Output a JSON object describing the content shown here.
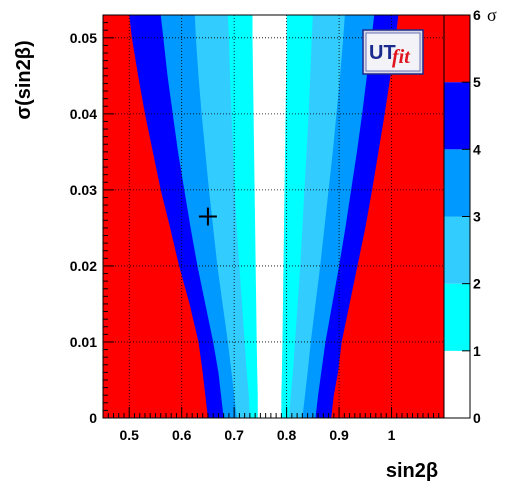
{
  "chart_data": {
    "type": "heatmap",
    "title": "",
    "xlabel": "sin2β",
    "ylabel": "σ(sin2β)",
    "xlim": [
      0.45,
      1.1
    ],
    "ylim": [
      0,
      0.053
    ],
    "xticks": [
      {
        "value": 0.5,
        "label": "0.5"
      },
      {
        "value": 0.6,
        "label": "0.6"
      },
      {
        "value": 0.7,
        "label": "0.7"
      },
      {
        "value": 0.8,
        "label": "0.8"
      },
      {
        "value": 0.9,
        "label": "0.9"
      },
      {
        "value": 1.0,
        "label": "1"
      }
    ],
    "yticks": [
      {
        "value": 0,
        "label": "0"
      },
      {
        "value": 0.01,
        "label": "0.01"
      },
      {
        "value": 0.02,
        "label": "0.02"
      },
      {
        "value": 0.03,
        "label": "0.03"
      },
      {
        "value": 0.04,
        "label": "0.04"
      },
      {
        "value": 0.05,
        "label": "0.05"
      }
    ],
    "grid": true,
    "marker": {
      "x": 0.65,
      "y": 0.0265,
      "symbol": "cross"
    },
    "colorbar": {
      "unit": "σ",
      "labels": [
        "0",
        "1",
        "2",
        "3",
        "4",
        "5",
        "6"
      ],
      "levels": [
        {
          "from": 0,
          "to": 1,
          "color": "#ffffff"
        },
        {
          "from": 1,
          "to": 2,
          "color": "#00ffff"
        },
        {
          "from": 2,
          "to": 3,
          "color": "#33ccff"
        },
        {
          "from": 3,
          "to": 4,
          "color": "#0099ff"
        },
        {
          "from": 4,
          "to": 5,
          "color": "#0000ff"
        },
        {
          "from": 5,
          "to": 6,
          "color": "#ff0000"
        }
      ]
    },
    "contours": {
      "y": [
        0.0,
        0.003,
        0.006,
        0.01,
        0.015,
        0.02,
        0.025,
        0.03,
        0.035,
        0.04,
        0.045,
        0.05,
        0.053
      ],
      "left": [
        [
          0.745,
          0.73,
          0.705,
          0.68,
          0.65,
          0.635
        ],
        [
          0.745,
          0.728,
          0.7,
          0.675,
          0.645,
          0.63
        ],
        [
          0.744,
          0.724,
          0.695,
          0.67,
          0.64,
          0.625
        ],
        [
          0.743,
          0.72,
          0.688,
          0.66,
          0.632,
          0.61
        ],
        [
          0.742,
          0.715,
          0.678,
          0.645,
          0.615,
          0.59
        ],
        [
          0.741,
          0.71,
          0.668,
          0.63,
          0.595,
          0.565
        ],
        [
          0.74,
          0.705,
          0.66,
          0.617,
          0.578,
          0.545
        ],
        [
          0.739,
          0.701,
          0.652,
          0.605,
          0.56,
          0.525
        ],
        [
          0.738,
          0.698,
          0.645,
          0.593,
          0.545,
          0.508
        ],
        [
          0.737,
          0.695,
          0.638,
          0.583,
          0.53,
          0.493
        ],
        [
          0.736,
          0.692,
          0.632,
          0.573,
          0.517,
          0.48
        ],
        [
          0.735,
          0.69,
          0.627,
          0.565,
          0.505,
          0.468
        ],
        [
          0.735,
          0.688,
          0.625,
          0.56,
          0.5,
          0.462
        ]
      ],
      "right": [
        [
          0.79,
          0.805,
          0.83,
          0.855,
          0.885,
          0.905
        ],
        [
          0.79,
          0.808,
          0.835,
          0.86,
          0.89,
          0.91
        ],
        [
          0.791,
          0.812,
          0.84,
          0.866,
          0.898,
          0.917
        ],
        [
          0.792,
          0.816,
          0.846,
          0.874,
          0.905,
          0.928
        ],
        [
          0.793,
          0.821,
          0.855,
          0.887,
          0.92,
          0.945
        ],
        [
          0.794,
          0.826,
          0.864,
          0.9,
          0.935,
          0.962
        ],
        [
          0.795,
          0.83,
          0.872,
          0.912,
          0.95,
          0.978
        ],
        [
          0.796,
          0.834,
          0.88,
          0.923,
          0.963,
          0.992
        ],
        [
          0.797,
          0.838,
          0.888,
          0.934,
          0.975,
          1.006
        ],
        [
          0.798,
          0.842,
          0.895,
          0.944,
          0.987,
          1.018
        ],
        [
          0.799,
          0.845,
          0.902,
          0.953,
          0.998,
          1.03
        ],
        [
          0.8,
          0.848,
          0.908,
          0.962,
          1.008,
          1.041
        ],
        [
          0.8,
          0.85,
          0.911,
          0.967,
          1.013,
          1.047
        ]
      ]
    }
  },
  "logo": {
    "ut": "UT",
    "fit": "fit"
  }
}
